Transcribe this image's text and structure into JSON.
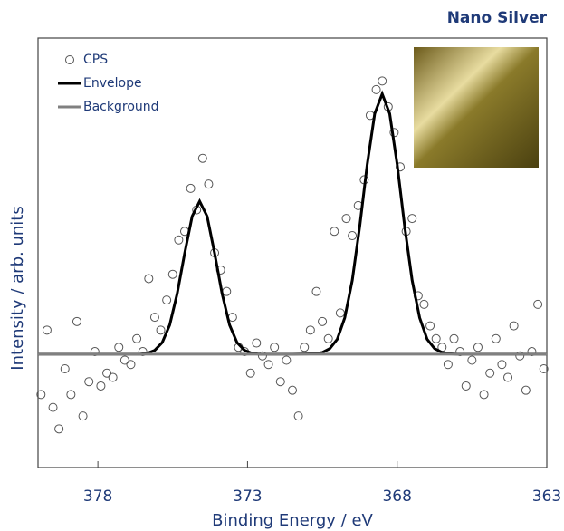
{
  "chart_data": {
    "type": "scatter",
    "title": "Nano Silver",
    "xlabel": "Binding Energy / eV",
    "ylabel": "Intensity / arb. units",
    "xlim": [
      380,
      363
    ],
    "ylim": [
      0,
      100
    ],
    "xticks": [
      378,
      373,
      368,
      363
    ],
    "legend": "upper left",
    "series": [
      {
        "name": "CPS",
        "color": "#555555",
        "style": "marker",
        "x": [
          379.9,
          379.7,
          379.5,
          379.3,
          379.1,
          378.9,
          378.7,
          378.5,
          378.3,
          378.1,
          377.9,
          377.7,
          377.5,
          377.3,
          377.1,
          376.9,
          376.7,
          376.5,
          376.3,
          376.1,
          375.9,
          375.7,
          375.5,
          375.3,
          375.1,
          374.9,
          374.7,
          374.5,
          374.3,
          374.1,
          373.9,
          373.7,
          373.5,
          373.3,
          373.1,
          372.9,
          372.7,
          372.5,
          372.3,
          372.1,
          371.9,
          371.7,
          371.5,
          371.3,
          371.1,
          370.9,
          370.7,
          370.5,
          370.3,
          370.1,
          369.9,
          369.7,
          369.5,
          369.3,
          369.1,
          368.9,
          368.7,
          368.5,
          368.3,
          368.1,
          367.9,
          367.7,
          367.5,
          367.3,
          367.1,
          366.9,
          366.7,
          366.5,
          366.3,
          366.1,
          365.9,
          365.7,
          365.5,
          365.3,
          365.1,
          364.9,
          364.7,
          364.5,
          364.3,
          364.1,
          363.9,
          363.7,
          363.5,
          363.3,
          363.1
        ],
        "values": [
          17,
          32,
          14,
          9,
          23,
          17,
          34,
          12,
          20,
          27,
          19,
          22,
          21,
          28,
          25,
          24,
          30,
          27,
          44,
          35,
          32,
          39,
          45,
          53,
          55,
          65,
          60,
          72,
          66,
          50,
          46,
          41,
          35,
          28,
          27,
          22,
          29,
          26,
          24,
          28,
          20,
          25,
          18,
          12,
          28,
          32,
          41,
          34,
          30,
          55,
          36,
          58,
          54,
          61,
          67,
          82,
          88,
          90,
          84,
          78,
          70,
          55,
          58,
          40,
          38,
          33,
          30,
          28,
          24,
          30,
          27,
          19,
          25,
          28,
          17,
          22,
          30,
          24,
          21,
          33,
          26,
          18,
          27,
          38,
          23
        ]
      },
      {
        "name": "Envelope",
        "color": "#000000",
        "style": "line",
        "x": [
          380,
          377,
          376.6,
          376.35,
          376.1,
          375.85,
          375.6,
          375.35,
          375.1,
          374.85,
          374.6,
          374.35,
          374.1,
          373.85,
          373.6,
          373.35,
          373.1,
          372.85,
          372.6,
          371.5,
          370.75,
          370.5,
          370.25,
          370,
          369.75,
          369.5,
          369.25,
          369,
          368.75,
          368.5,
          368.25,
          368,
          367.75,
          367.5,
          367.25,
          367,
          366.75,
          366.5,
          366.25,
          366,
          363
        ],
        "values": [
          26.4,
          26.4,
          26.4,
          26.6,
          27.3,
          29.1,
          33.2,
          40.5,
          49.9,
          58.5,
          62.0,
          58.5,
          49.9,
          40.5,
          33.2,
          29.1,
          27.3,
          26.6,
          26.4,
          26.4,
          26.5,
          26.8,
          27.7,
          29.9,
          34.9,
          43.6,
          56.2,
          70.6,
          82.4,
          87.0,
          82.4,
          70.6,
          56.2,
          43.6,
          34.9,
          29.9,
          27.7,
          26.8,
          26.5,
          26.4,
          26.4
        ]
      },
      {
        "name": "Background",
        "color": "#808080",
        "style": "line",
        "x": [
          380,
          363
        ],
        "values": [
          26.4,
          26.4
        ]
      }
    ]
  }
}
